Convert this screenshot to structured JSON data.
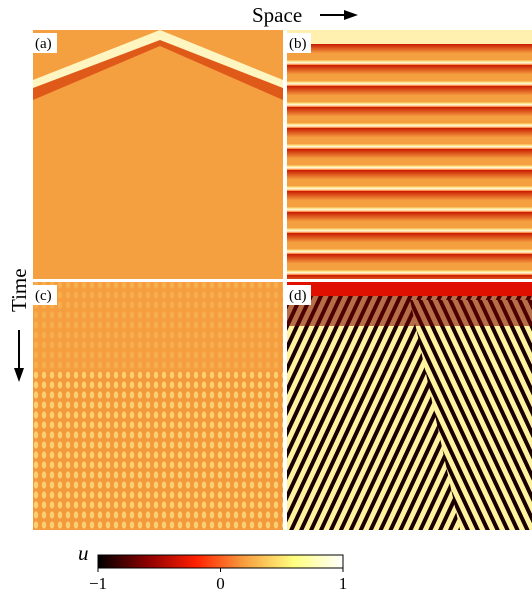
{
  "axes": {
    "x_label": "Space",
    "y_label": "Time"
  },
  "panels": [
    {
      "label": "(a)"
    },
    {
      "label": "(b)"
    },
    {
      "label": "(c)"
    },
    {
      "label": "(d)"
    }
  ],
  "colorbar": {
    "label": "u",
    "range": [
      -1,
      1
    ],
    "ticks": [
      {
        "value": -1,
        "label": "−1"
      },
      {
        "value": 0,
        "label": "0"
      },
      {
        "value": 1,
        "label": "1"
      }
    ],
    "colors": [
      "#000000",
      "#8b0000",
      "#ff2000",
      "#f7a040",
      "#ffff80",
      "#ffffff"
    ]
  }
}
